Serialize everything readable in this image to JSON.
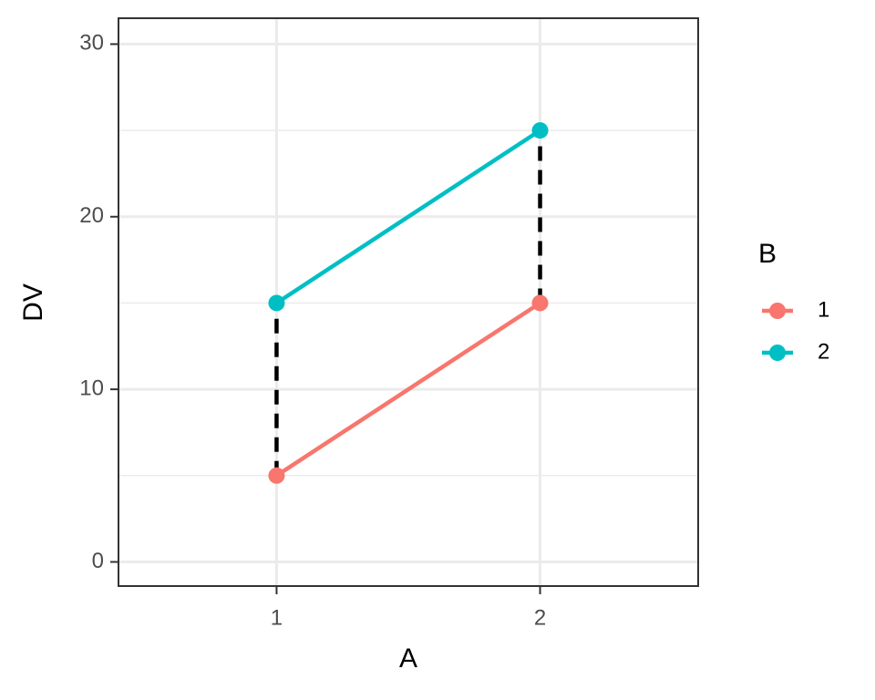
{
  "chart_data": {
    "type": "line",
    "x_label": "A",
    "y_label": "DV",
    "legend_title": "B",
    "categories": [
      "1",
      "2"
    ],
    "series": [
      {
        "name": "1",
        "color": "#F8766D",
        "values": [
          5,
          15
        ]
      },
      {
        "name": "2",
        "color": "#00BFC4",
        "values": [
          15,
          25
        ]
      }
    ],
    "connector_color": "#000000",
    "ylim": [
      -1.4,
      31.5
    ],
    "yticks": [
      0,
      10,
      20,
      30
    ],
    "grid": true,
    "legend_position": "right"
  }
}
